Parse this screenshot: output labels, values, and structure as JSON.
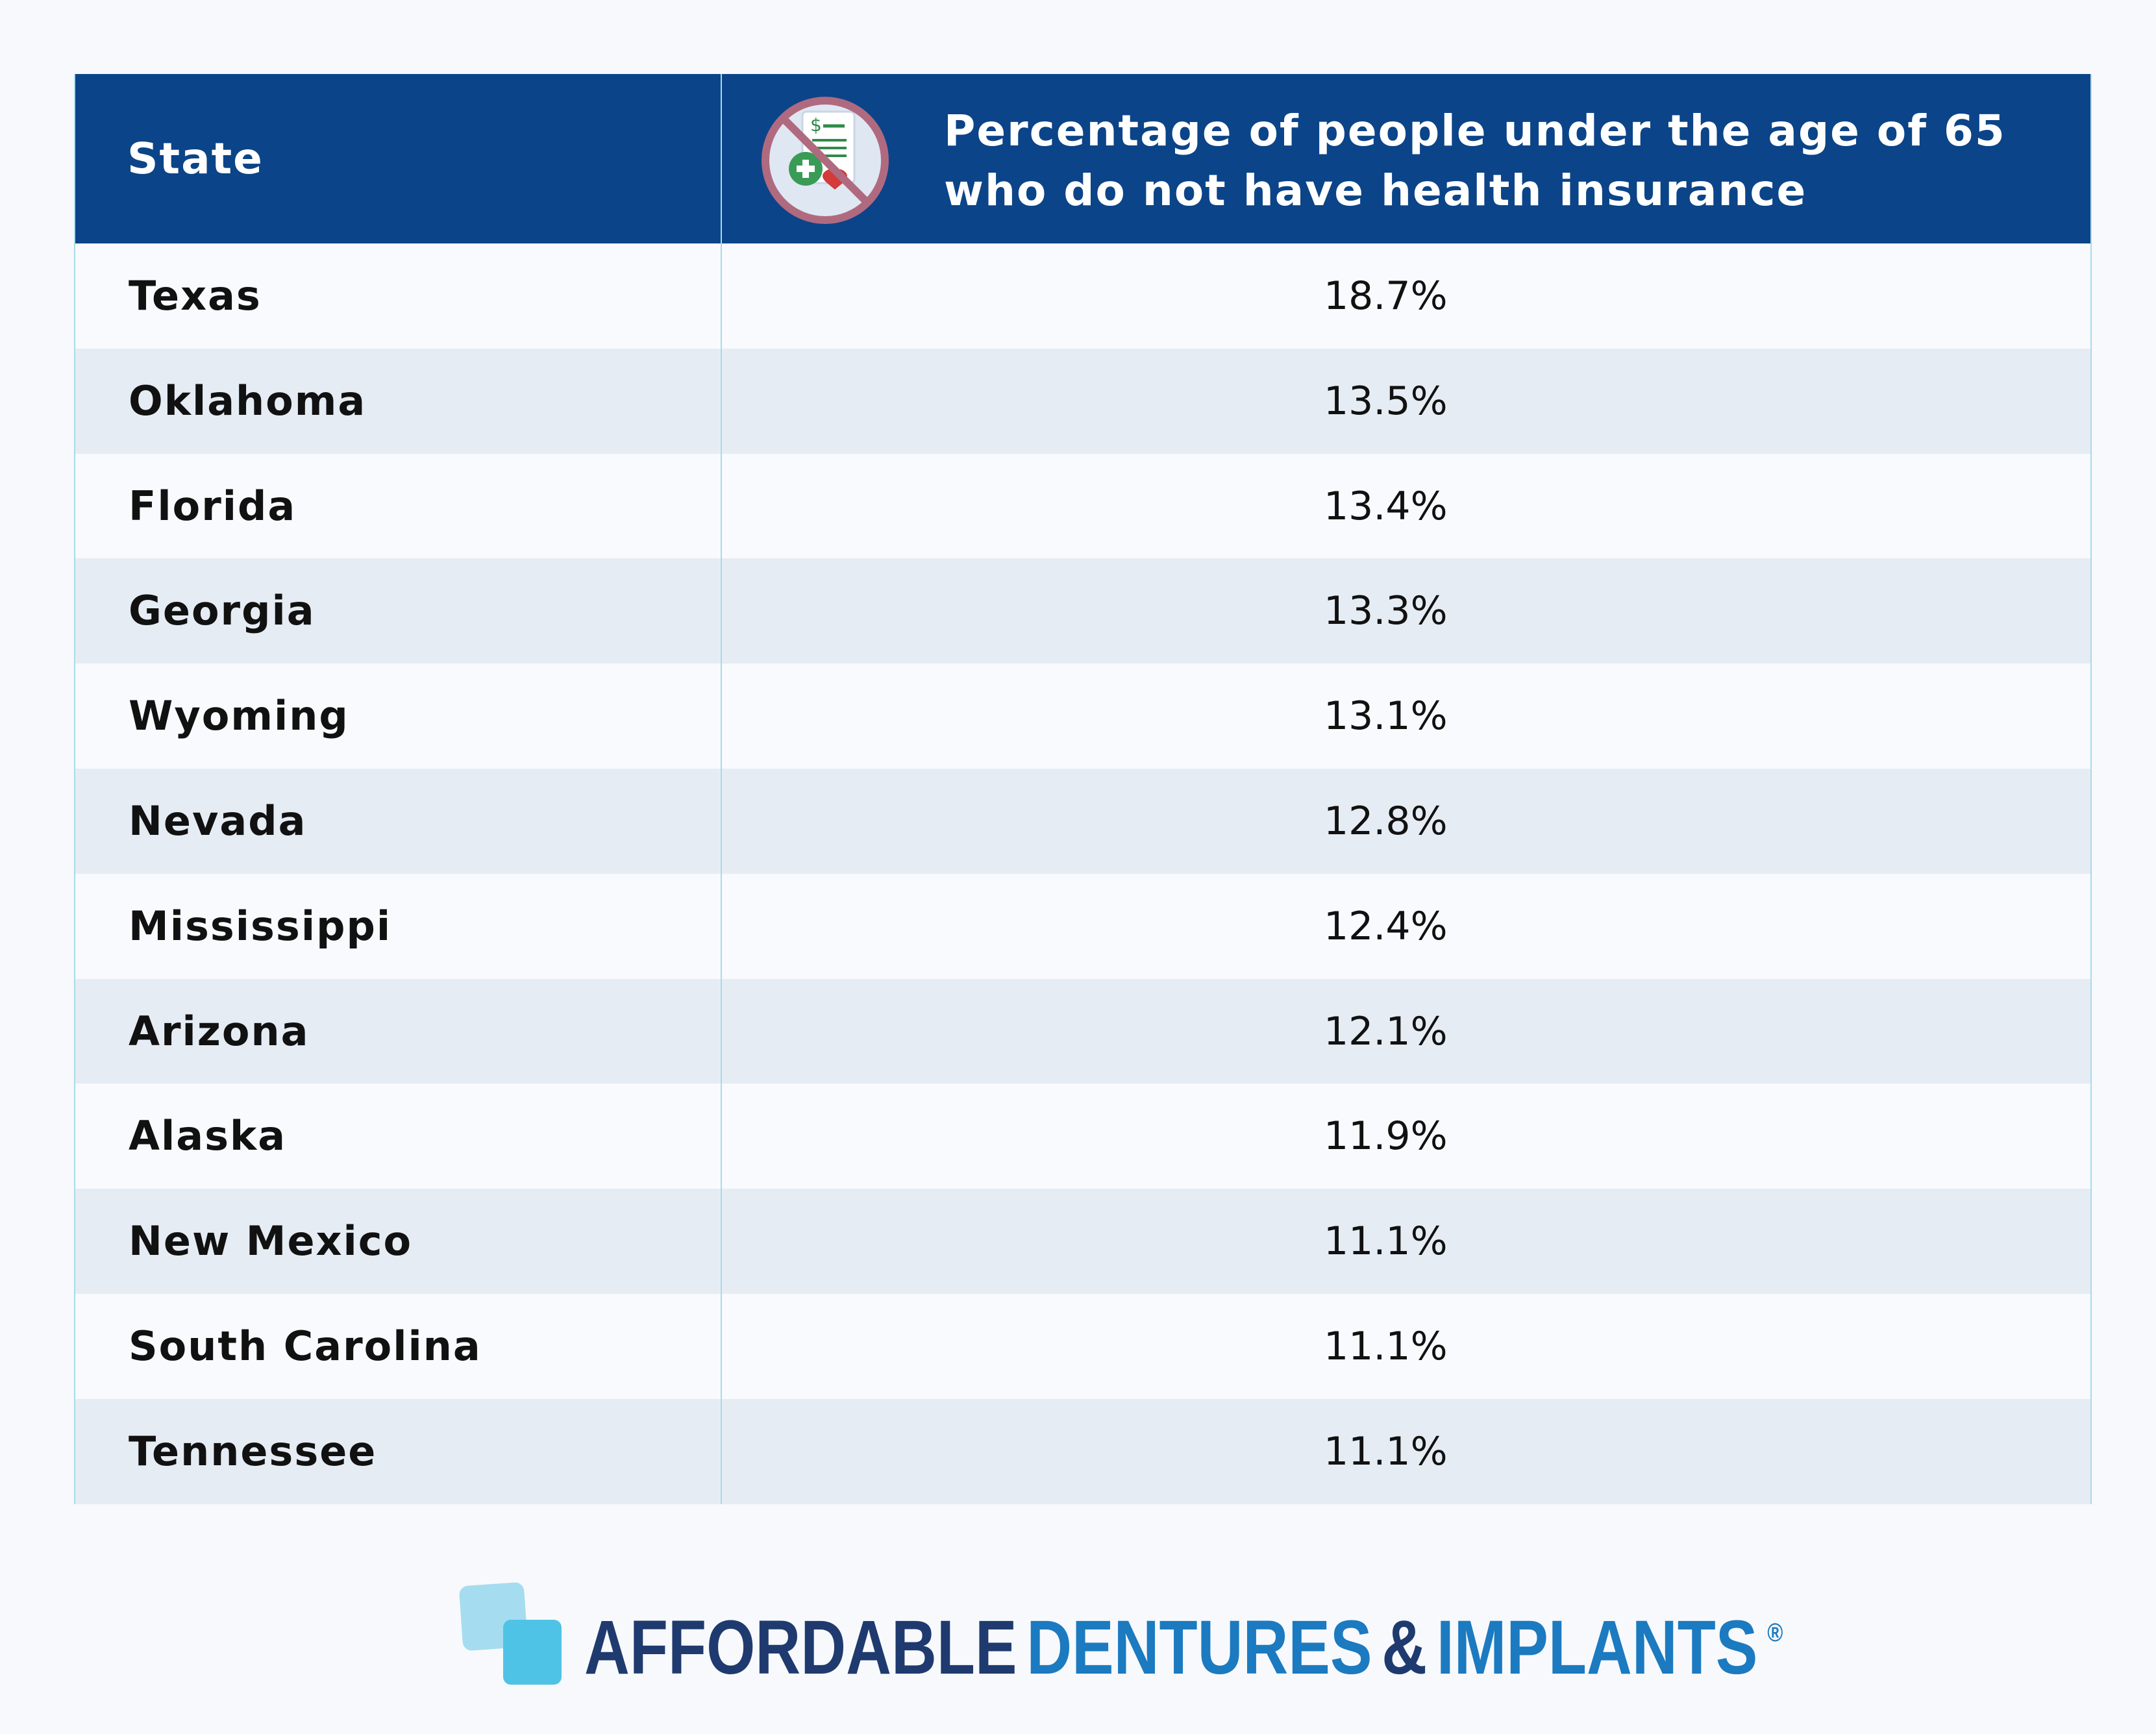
{
  "table": {
    "header": [
      "State",
      "Percentage of people under the age of 65 who do not have health insurance"
    ],
    "rows": [
      [
        "Texas",
        "18.7%"
      ],
      [
        "Oklahoma",
        "13.5%"
      ],
      [
        "Florida",
        "13.4%"
      ],
      [
        "Georgia",
        "13.3%"
      ],
      [
        "Wyoming",
        "13.1%"
      ],
      [
        "Nevada",
        "12.8%"
      ],
      [
        "Mississippi",
        "12.4%"
      ],
      [
        "Arizona",
        "12.1%"
      ],
      [
        "Alaska",
        "11.9%"
      ],
      [
        "New Mexico",
        "11.1%"
      ],
      [
        "South Carolina",
        "11.1%"
      ],
      [
        "Tennessee",
        "11.1%"
      ]
    ]
  },
  "footer": {
    "logo": [
      "AFFORDABLE",
      "DENTURES",
      "&",
      "IMPLANTS",
      "®"
    ]
  }
}
